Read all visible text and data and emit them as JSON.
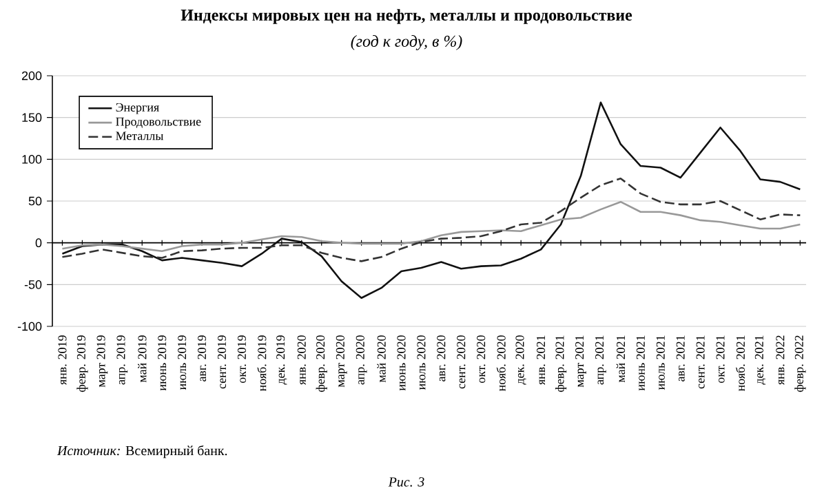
{
  "chart_data": {
    "type": "line",
    "title": "Индексы мировых цен на нефть, металлы и продовольствие",
    "subtitle": "(год к году, в %)",
    "categories": [
      "янв. 2019",
      "февр. 2019",
      "март 2019",
      "апр. 2019",
      "май 2019",
      "июнь 2019",
      "июль 2019",
      "авг. 2019",
      "сент. 2019",
      "окт. 2019",
      "нояб. 2019",
      "дек. 2019",
      "янв. 2020",
      "февр. 2020",
      "март 2020",
      "апр. 2020",
      "май 2020",
      "июнь 2020",
      "июль 2020",
      "авг. 2020",
      "сент. 2020",
      "окт. 2020",
      "нояб. 2020",
      "дек. 2020",
      "янв. 2021",
      "февр. 2021",
      "март 2021",
      "апр. 2021",
      "май 2021",
      "июнь 2021",
      "июль 2021",
      "авг. 2021",
      "сент. 2021",
      "окт. 2021",
      "нояб. 2021",
      "дек. 2021",
      "янв. 2022",
      "февр. 2022"
    ],
    "series": [
      {
        "name": "Энергия",
        "color": "#111111",
        "line_style": "solid",
        "values": [
          -13,
          -4,
          -2,
          -2,
          -10,
          -21,
          -18,
          -21,
          -24,
          -28,
          -13,
          5,
          1,
          -16,
          -46,
          -66,
          -54,
          -34,
          -30,
          -23,
          -31,
          -28,
          -27,
          -19,
          -8,
          22,
          80,
          168,
          118,
          92,
          90,
          78,
          108,
          138,
          110,
          76,
          73,
          64
        ]
      },
      {
        "name": "Продовольствие",
        "color": "#999999",
        "line_style": "solid",
        "values": [
          -7,
          -3,
          -2,
          -4,
          -7,
          -10,
          -4,
          -2,
          -2,
          0,
          4,
          8,
          7,
          2,
          0,
          -1,
          -1,
          -1,
          2,
          9,
          13,
          14,
          15,
          14,
          21,
          28,
          30,
          40,
          49,
          37,
          37,
          33,
          27,
          25,
          21,
          17,
          17,
          22
        ]
      },
      {
        "name": "Металлы",
        "color": "#333333",
        "line_style": "dashed",
        "values": [
          -17,
          -13,
          -8,
          -12,
          -16,
          -18,
          -10,
          -9,
          -7,
          -6,
          -6,
          -3,
          -3,
          -12,
          -18,
          -22,
          -17,
          -7,
          1,
          5,
          6,
          8,
          14,
          22,
          24,
          38,
          54,
          69,
          77,
          59,
          49,
          46,
          46,
          50,
          39,
          28,
          34,
          33
        ]
      }
    ],
    "ylim": [
      -100,
      200
    ],
    "yticks": [
      -100,
      -50,
      0,
      50,
      100,
      150,
      200
    ],
    "grid": "y",
    "legend": "top left",
    "annotations": [
      "*Источник:* Всемирный банк.",
      "Рис. 3"
    ]
  }
}
